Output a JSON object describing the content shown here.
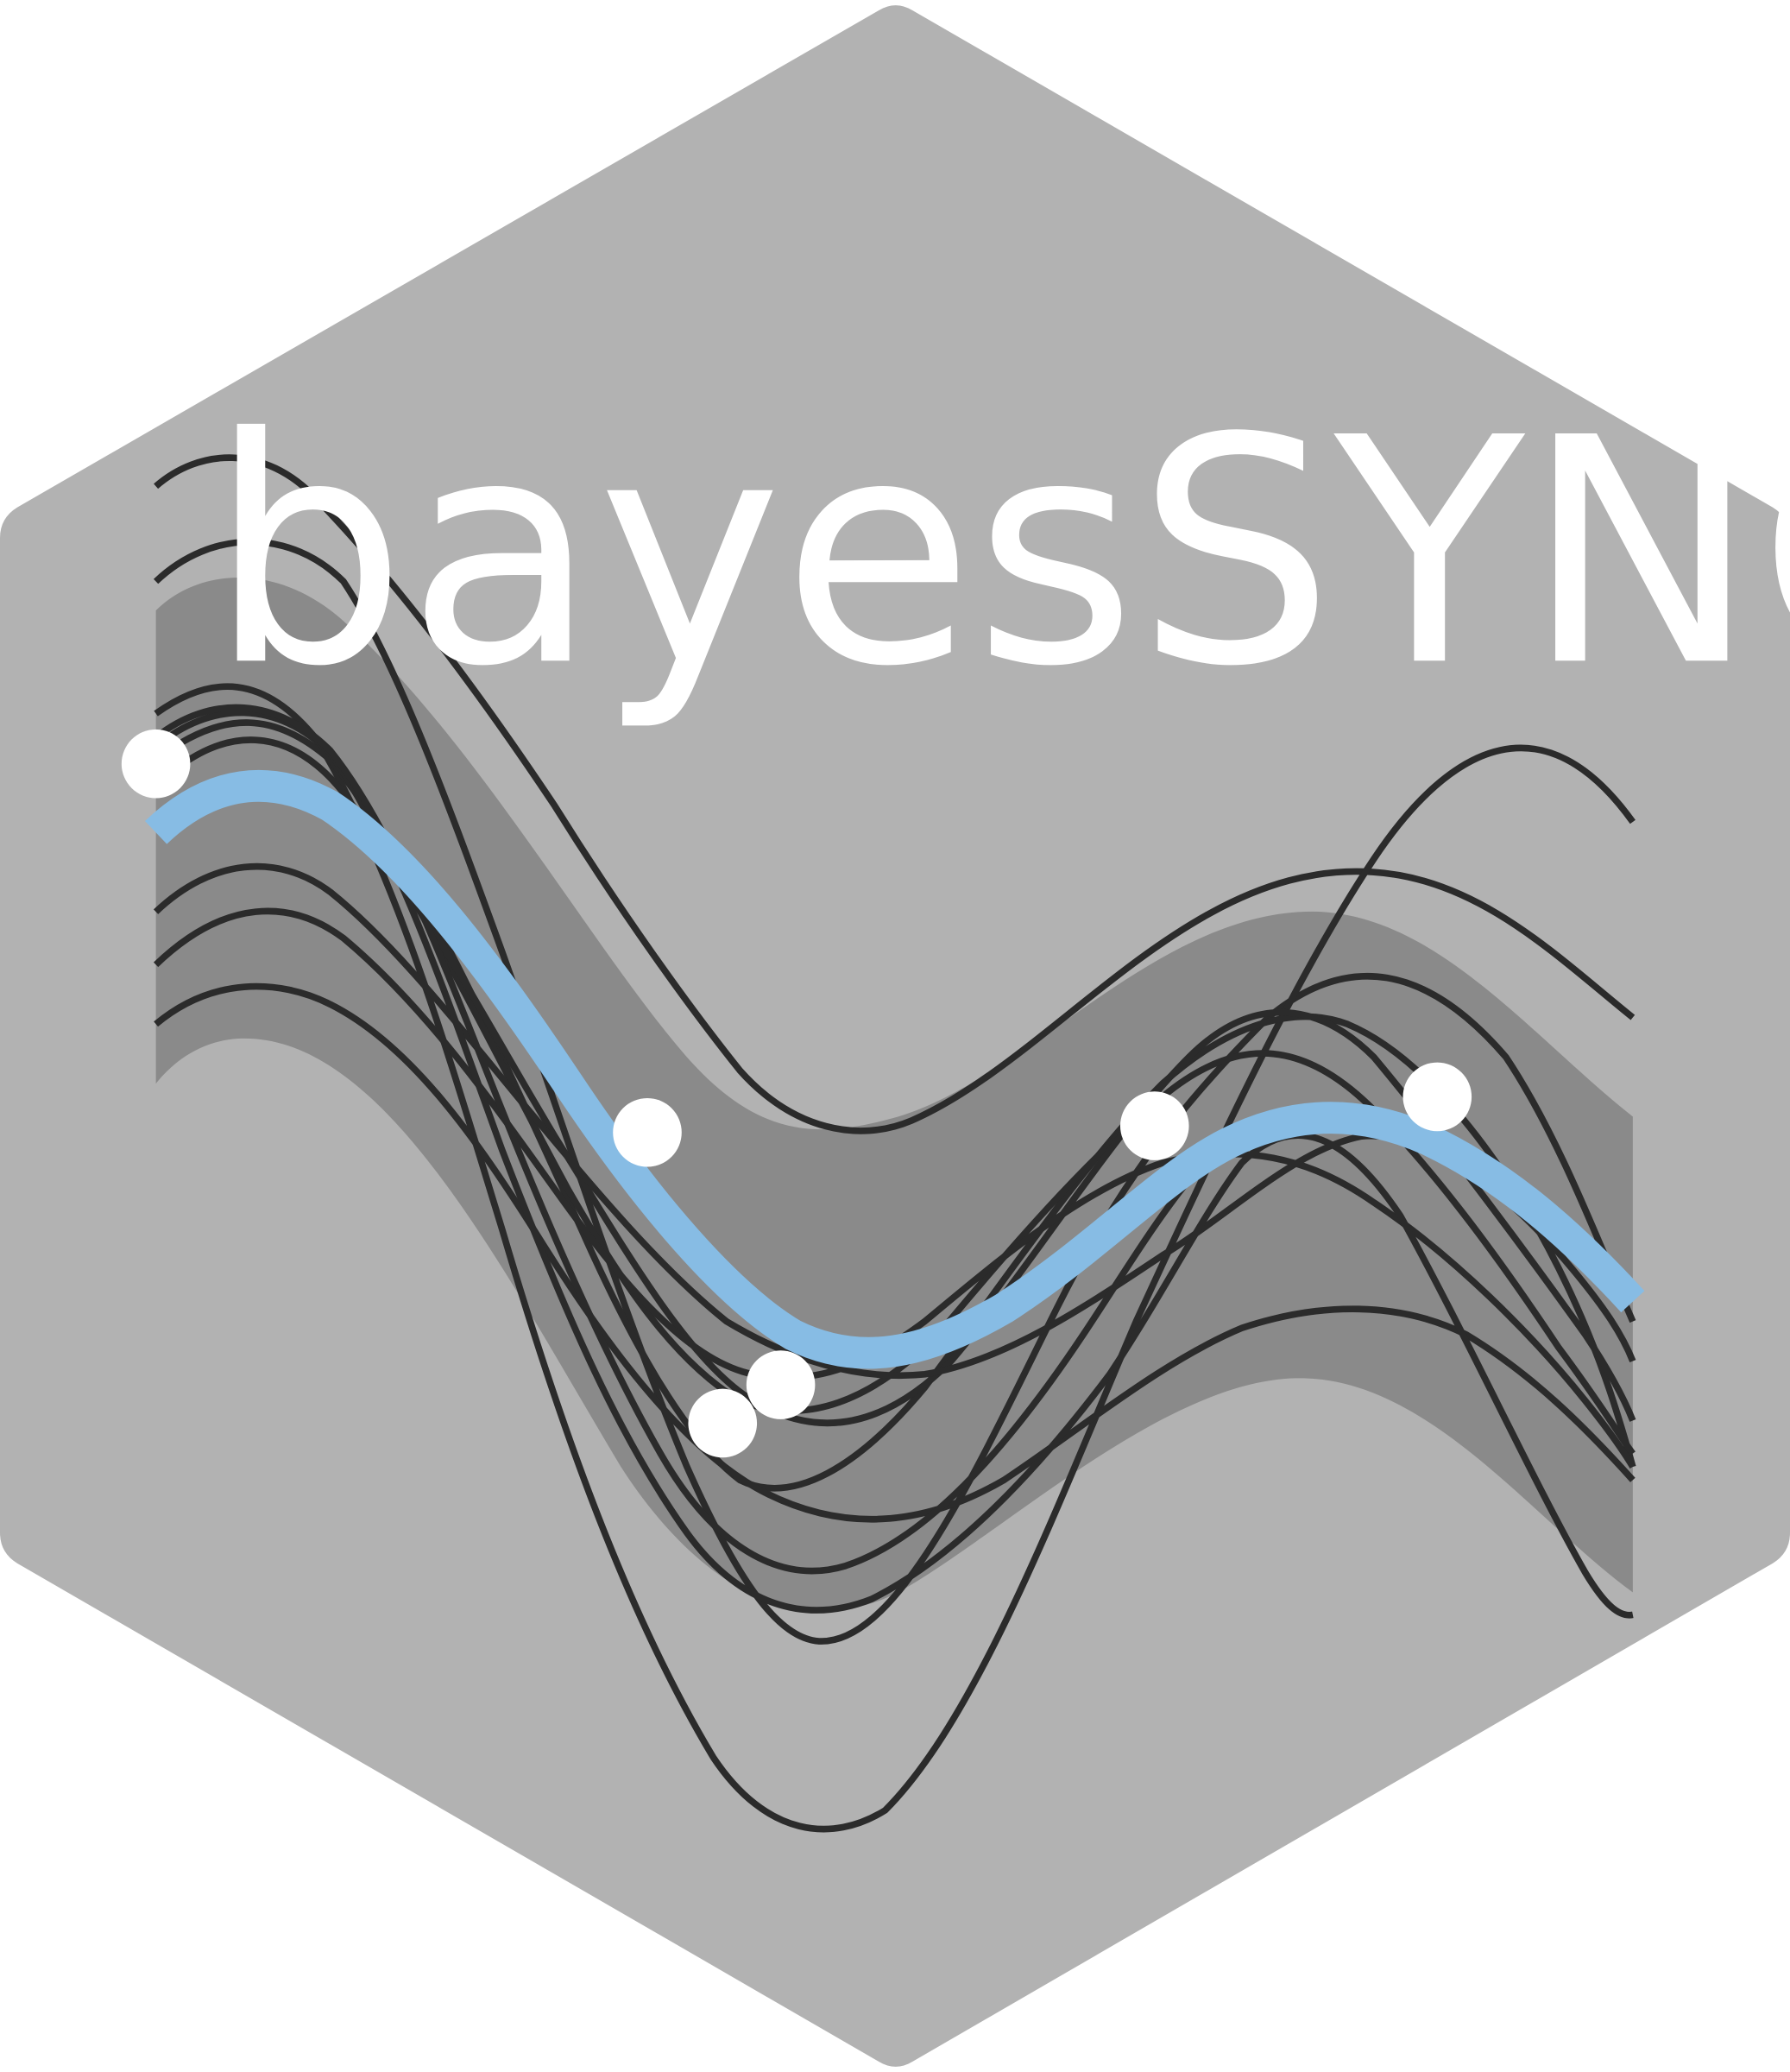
{
  "logo": {
    "title": "bayesSYNC",
    "colors": {
      "hexagon": "#b2b2b2",
      "band": "#8a8a8a",
      "curves": "#2b2b2b",
      "mean_curve": "#87bce4",
      "points": "#ffffff",
      "title": "#ffffff"
    }
  }
}
